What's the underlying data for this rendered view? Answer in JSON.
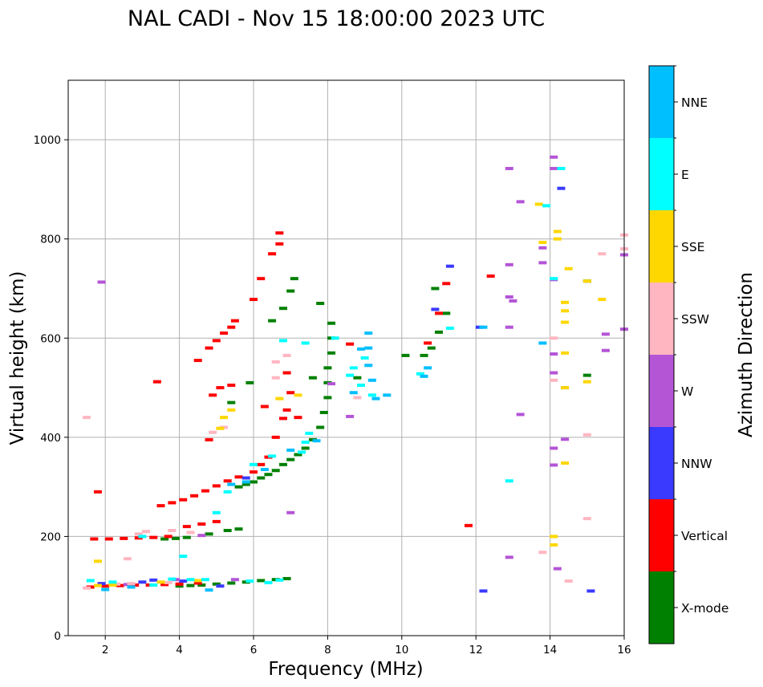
{
  "chart_data": {
    "type": "scatter",
    "title": "NAL CADI - Nov 15 18:00:00 2023 UTC",
    "xlabel": "Frequency (MHz)",
    "ylabel": "Virtual height (km)",
    "xlim": [
      1,
      16
    ],
    "ylim": [
      0,
      1120
    ],
    "xticks": [
      2,
      4,
      6,
      8,
      10,
      12,
      14,
      16
    ],
    "yticks": [
      0,
      200,
      400,
      600,
      800,
      1000
    ],
    "grid": true,
    "colorbar": {
      "title": "Azimuth Direction",
      "categories": [
        {
          "name": "X-mode",
          "color": "#008000"
        },
        {
          "name": "Vertical",
          "color": "#ff0000"
        },
        {
          "name": "NNW",
          "color": "#3a3aff"
        },
        {
          "name": "W",
          "color": "#b455d6"
        },
        {
          "name": "SSW",
          "color": "#ffb6c1"
        },
        {
          "name": "SSE",
          "color": "#ffd700"
        },
        {
          "name": "E",
          "color": "#00ffff"
        },
        {
          "name": "NNE",
          "color": "#00bfff"
        }
      ]
    },
    "series": [
      {
        "name": "X-mode",
        "points": [
          [
            4.0,
            100
          ],
          [
            4.3,
            101
          ],
          [
            4.6,
            102
          ],
          [
            5.0,
            104
          ],
          [
            5.4,
            106
          ],
          [
            5.8,
            108
          ],
          [
            6.2,
            111
          ],
          [
            6.6,
            113
          ],
          [
            6.9,
            115
          ],
          [
            3.6,
            195
          ],
          [
            3.9,
            196
          ],
          [
            4.2,
            198
          ],
          [
            4.8,
            205
          ],
          [
            5.3,
            212
          ],
          [
            5.6,
            215
          ],
          [
            5.6,
            300
          ],
          [
            5.8,
            305
          ],
          [
            6.0,
            310
          ],
          [
            6.2,
            318
          ],
          [
            6.4,
            325
          ],
          [
            6.6,
            333
          ],
          [
            6.8,
            345
          ],
          [
            7.0,
            355
          ],
          [
            7.2,
            365
          ],
          [
            7.4,
            378
          ],
          [
            7.6,
            395
          ],
          [
            7.8,
            420
          ],
          [
            7.9,
            450
          ],
          [
            8.0,
            480
          ],
          [
            8.0,
            510
          ],
          [
            8.0,
            540
          ],
          [
            8.1,
            570
          ],
          [
            8.1,
            600
          ],
          [
            8.1,
            630
          ],
          [
            6.5,
            635
          ],
          [
            6.8,
            660
          ],
          [
            7.0,
            695
          ],
          [
            7.1,
            720
          ],
          [
            7.8,
            670
          ],
          [
            7.6,
            520
          ],
          [
            5.4,
            470
          ],
          [
            5.9,
            510
          ],
          [
            10.1,
            565
          ],
          [
            10.6,
            565
          ],
          [
            10.8,
            580
          ],
          [
            10.9,
            700
          ],
          [
            11.2,
            650
          ],
          [
            11.0,
            612
          ],
          [
            15.0,
            715
          ],
          [
            15.0,
            525
          ],
          [
            8.8,
            520
          ]
        ]
      },
      {
        "name": "Vertical",
        "points": [
          [
            1.6,
            98
          ],
          [
            2.0,
            100
          ],
          [
            2.4,
            101
          ],
          [
            2.8,
            102
          ],
          [
            3.2,
            102
          ],
          [
            3.6,
            103
          ],
          [
            4.0,
            104
          ],
          [
            4.5,
            106
          ],
          [
            1.7,
            195
          ],
          [
            2.1,
            195
          ],
          [
            2.5,
            196
          ],
          [
            2.9,
            197
          ],
          [
            3.3,
            198
          ],
          [
            3.7,
            200
          ],
          [
            4.2,
            220
          ],
          [
            4.6,
            225
          ],
          [
            5.0,
            230
          ],
          [
            3.5,
            262
          ],
          [
            3.8,
            268
          ],
          [
            4.1,
            274
          ],
          [
            4.4,
            282
          ],
          [
            4.7,
            292
          ],
          [
            5.0,
            302
          ],
          [
            5.3,
            312
          ],
          [
            5.6,
            320
          ],
          [
            6.0,
            330
          ],
          [
            6.2,
            345
          ],
          [
            6.4,
            360
          ],
          [
            4.5,
            555
          ],
          [
            4.8,
            580
          ],
          [
            5.0,
            595
          ],
          [
            5.2,
            610
          ],
          [
            5.4,
            622
          ],
          [
            5.5,
            635
          ],
          [
            4.8,
            395
          ],
          [
            4.9,
            485
          ],
          [
            5.1,
            500
          ],
          [
            5.4,
            505
          ],
          [
            6.3,
            462
          ],
          [
            6.2,
            720
          ],
          [
            6.5,
            770
          ],
          [
            6.7,
            790
          ],
          [
            6.9,
            530
          ],
          [
            7.0,
            490
          ],
          [
            6.8,
            438
          ],
          [
            7.2,
            440
          ],
          [
            6.6,
            400
          ],
          [
            6.9,
            455
          ],
          [
            6.0,
            678
          ],
          [
            6.7,
            812
          ],
          [
            8.6,
            588
          ],
          [
            10.7,
            590
          ],
          [
            11.0,
            650
          ],
          [
            11.2,
            710
          ],
          [
            12.4,
            725
          ],
          [
            11.8,
            222
          ],
          [
            3.4,
            512
          ],
          [
            1.8,
            290
          ]
        ]
      },
      {
        "name": "NNW",
        "points": [
          [
            1.9,
            105
          ],
          [
            3.0,
            108
          ],
          [
            3.3,
            112
          ],
          [
            4.1,
            110
          ],
          [
            5.1,
            100
          ],
          [
            5.8,
            318
          ],
          [
            14.3,
            902
          ],
          [
            12.2,
            90
          ],
          [
            15.1,
            90
          ],
          [
            14.4,
            500
          ],
          [
            10.9,
            658
          ],
          [
            12.1,
            622
          ],
          [
            11.3,
            745
          ]
        ]
      },
      {
        "name": "W",
        "points": [
          [
            2.6,
            103
          ],
          [
            3.9,
            113
          ],
          [
            5.5,
            113
          ],
          [
            4.6,
            202
          ],
          [
            8.1,
            508
          ],
          [
            8.6,
            442
          ],
          [
            14.1,
            965
          ],
          [
            14.1,
            942
          ],
          [
            12.9,
            942
          ],
          [
            13.2,
            875
          ],
          [
            12.9,
            748
          ],
          [
            13.8,
            752
          ],
          [
            14.1,
            718
          ],
          [
            13.0,
            675
          ],
          [
            12.9,
            683
          ],
          [
            12.9,
            622
          ],
          [
            13.8,
            782
          ],
          [
            14.1,
            568
          ],
          [
            14.1,
            530
          ],
          [
            14.1,
            378
          ],
          [
            14.1,
            344
          ],
          [
            14.4,
            396
          ],
          [
            13.2,
            446
          ],
          [
            12.9,
            158
          ],
          [
            14.2,
            135
          ],
          [
            15.5,
            608
          ],
          [
            15.5,
            575
          ],
          [
            16.0,
            618
          ],
          [
            16.0,
            768
          ],
          [
            7.0,
            248
          ],
          [
            1.9,
            713
          ]
        ]
      },
      {
        "name": "SSW",
        "points": [
          [
            1.5,
            96
          ],
          [
            2.3,
            104
          ],
          [
            2.7,
            105
          ],
          [
            3.7,
            107
          ],
          [
            2.6,
            155
          ],
          [
            2.9,
            205
          ],
          [
            3.1,
            210
          ],
          [
            4.3,
            208
          ],
          [
            3.8,
            212
          ],
          [
            6.6,
            520
          ],
          [
            6.6,
            552
          ],
          [
            6.9,
            565
          ],
          [
            4.9,
            410
          ],
          [
            5.2,
            420
          ],
          [
            1.5,
            440
          ],
          [
            8.8,
            480
          ],
          [
            13.8,
            168
          ],
          [
            14.5,
            110
          ],
          [
            15.0,
            236
          ],
          [
            15.0,
            405
          ],
          [
            15.4,
            770
          ],
          [
            16.0,
            780
          ],
          [
            16.0,
            808
          ],
          [
            14.1,
            600
          ],
          [
            14.1,
            515
          ]
        ]
      },
      {
        "name": "SSE",
        "points": [
          [
            1.8,
            101
          ],
          [
            2.2,
            102
          ],
          [
            3.5,
            108
          ],
          [
            4.5,
            111
          ],
          [
            1.8,
            150
          ],
          [
            5.1,
            418
          ],
          [
            5.2,
            440
          ],
          [
            5.4,
            455
          ],
          [
            6.7,
            478
          ],
          [
            7.2,
            485
          ],
          [
            14.2,
            815
          ],
          [
            14.2,
            800
          ],
          [
            14.4,
            672
          ],
          [
            14.4,
            655
          ],
          [
            14.4,
            632
          ],
          [
            14.5,
            740
          ],
          [
            14.4,
            570
          ],
          [
            13.7,
            870
          ],
          [
            13.8,
            793
          ],
          [
            15.0,
            715
          ],
          [
            15.4,
            678
          ],
          [
            15.0,
            512
          ],
          [
            14.1,
            200
          ],
          [
            14.1,
            183
          ],
          [
            14.4,
            348
          ],
          [
            14.4,
            500
          ]
        ]
      },
      {
        "name": "E",
        "points": [
          [
            1.6,
            111
          ],
          [
            2.2,
            108
          ],
          [
            3.3,
            102
          ],
          [
            3.8,
            114
          ],
          [
            4.3,
            113
          ],
          [
            4.7,
            113
          ],
          [
            5.9,
            110
          ],
          [
            6.4,
            107
          ],
          [
            6.7,
            112
          ],
          [
            4.1,
            160
          ],
          [
            3.0,
            200
          ],
          [
            5.0,
            248
          ],
          [
            5.3,
            290
          ],
          [
            6.0,
            345
          ],
          [
            6.5,
            362
          ],
          [
            7.3,
            370
          ],
          [
            7.4,
            390
          ],
          [
            7.5,
            408
          ],
          [
            8.6,
            525
          ],
          [
            8.7,
            540
          ],
          [
            9.0,
            560
          ],
          [
            8.9,
            505
          ],
          [
            9.2,
            485
          ],
          [
            6.8,
            595
          ],
          [
            7.4,
            590
          ],
          [
            8.2,
            600
          ],
          [
            14.1,
            720
          ],
          [
            14.3,
            942
          ],
          [
            13.9,
            867
          ],
          [
            12.9,
            312
          ],
          [
            11.3,
            620
          ],
          [
            10.5,
            528
          ]
        ]
      },
      {
        "name": "NNE",
        "points": [
          [
            2.0,
            93
          ],
          [
            2.7,
            98
          ],
          [
            4.8,
            92
          ],
          [
            5.4,
            305
          ],
          [
            5.8,
            310
          ],
          [
            6.3,
            335
          ],
          [
            7.0,
            374
          ],
          [
            7.7,
            393
          ],
          [
            9.1,
            580
          ],
          [
            9.1,
            610
          ],
          [
            9.1,
            545
          ],
          [
            9.2,
            515
          ],
          [
            9.3,
            478
          ],
          [
            9.6,
            485
          ],
          [
            8.7,
            490
          ],
          [
            8.9,
            578
          ],
          [
            10.7,
            540
          ],
          [
            10.6,
            523
          ],
          [
            13.8,
            590
          ],
          [
            12.2,
            622
          ]
        ]
      }
    ]
  }
}
